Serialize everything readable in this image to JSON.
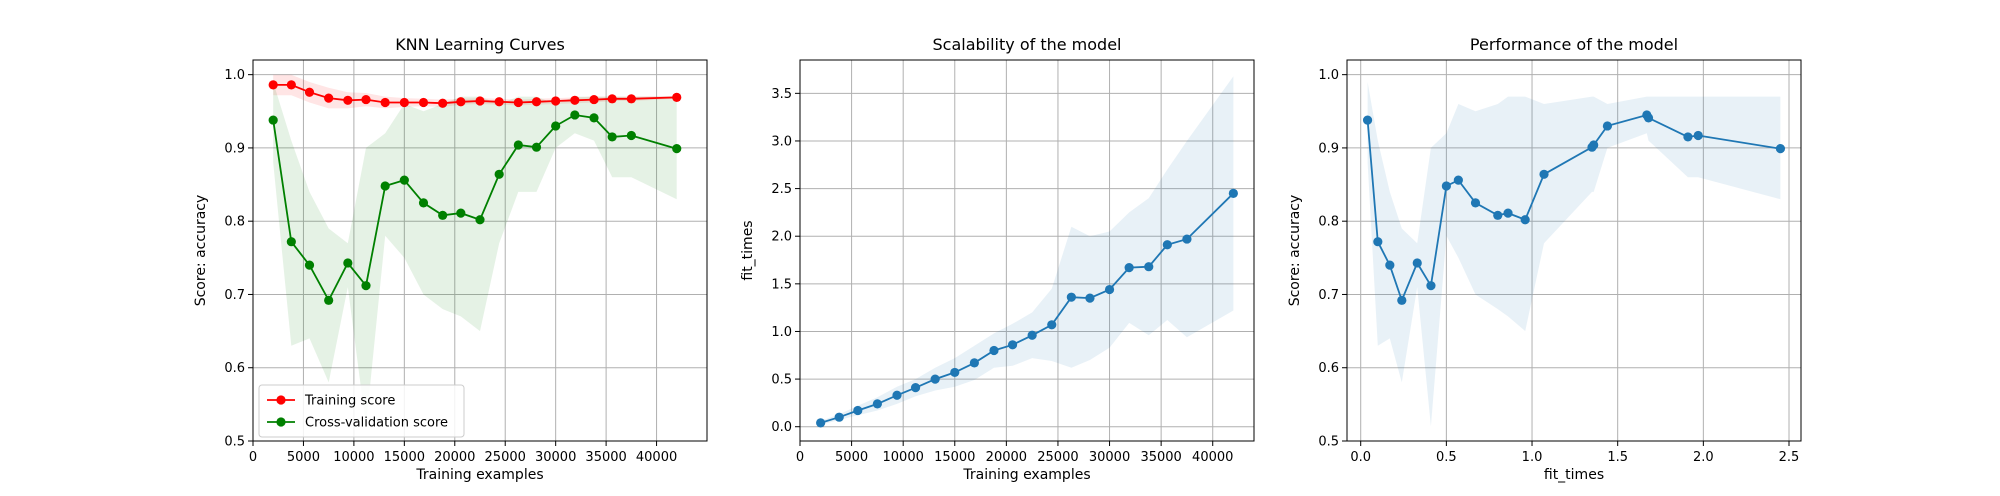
{
  "chart_data": [
    {
      "type": "line",
      "title": "KNN Learning Curves",
      "xlabel": "Training examples",
      "ylabel": "Score: accuracy",
      "xlim": [
        0,
        45000
      ],
      "ylim": [
        0.5,
        1.02
      ],
      "xticks": [
        0,
        5000,
        10000,
        15000,
        20000,
        25000,
        30000,
        35000,
        40000
      ],
      "yticks": [
        0.5,
        0.6,
        0.7,
        0.8,
        0.9,
        1.0
      ],
      "grid": true,
      "legend_position": "lower-left",
      "x": [
        2000,
        3800,
        5600,
        7500,
        9400,
        11200,
        13100,
        15000,
        16900,
        18800,
        20600,
        22500,
        24400,
        26300,
        28100,
        30000,
        31900,
        33800,
        35600,
        37500,
        42000
      ],
      "series": [
        {
          "name": "Training score",
          "color": "#ff0000",
          "values": [
            0.986,
            0.986,
            0.976,
            0.968,
            0.965,
            0.966,
            0.962,
            0.962,
            0.962,
            0.961,
            0.963,
            0.964,
            0.963,
            0.962,
            0.963,
            0.964,
            0.965,
            0.966,
            0.967,
            0.967,
            0.969
          ],
          "band_upper": [
            1.0,
            1.0,
            0.99,
            0.982,
            0.976,
            0.975,
            0.97,
            0.968,
            0.967,
            0.966,
            0.967,
            0.968,
            0.967,
            0.966,
            0.967,
            0.968,
            0.969,
            0.97,
            0.97,
            0.97,
            0.971
          ],
          "band_lower": [
            0.972,
            0.972,
            0.962,
            0.954,
            0.954,
            0.957,
            0.954,
            0.956,
            0.957,
            0.956,
            0.959,
            0.96,
            0.959,
            0.958,
            0.959,
            0.96,
            0.961,
            0.962,
            0.964,
            0.964,
            0.967
          ]
        },
        {
          "name": "Cross-validation score",
          "color": "#008000",
          "values": [
            0.938,
            0.772,
            0.74,
            0.692,
            0.743,
            0.712,
            0.848,
            0.856,
            0.825,
            0.808,
            0.811,
            0.802,
            0.864,
            0.904,
            0.901,
            0.93,
            0.945,
            0.941,
            0.915,
            0.917,
            0.899
          ],
          "band_upper": [
            0.99,
            0.91,
            0.84,
            0.79,
            0.77,
            0.9,
            0.92,
            0.96,
            0.95,
            0.96,
            0.97,
            0.97,
            0.96,
            0.97,
            0.97,
            0.96,
            0.97,
            0.97,
            0.97,
            0.97,
            0.97
          ],
          "band_lower": [
            0.88,
            0.63,
            0.64,
            0.58,
            0.71,
            0.52,
            0.78,
            0.75,
            0.7,
            0.68,
            0.67,
            0.65,
            0.77,
            0.84,
            0.84,
            0.9,
            0.92,
            0.91,
            0.86,
            0.86,
            0.83
          ]
        }
      ]
    },
    {
      "type": "line",
      "title": "Scalability of the model",
      "xlabel": "Training examples",
      "ylabel": "fit_times",
      "xlim": [
        0,
        44000
      ],
      "ylim": [
        -0.15,
        3.85
      ],
      "xticks": [
        0,
        5000,
        10000,
        15000,
        20000,
        25000,
        30000,
        35000,
        40000
      ],
      "yticks": [
        0.0,
        0.5,
        1.0,
        1.5,
        2.0,
        2.5,
        3.0,
        3.5
      ],
      "grid": true,
      "x": [
        2000,
        3800,
        5600,
        7500,
        9400,
        11200,
        13100,
        15000,
        16900,
        18800,
        20600,
        22500,
        24400,
        26300,
        28100,
        30000,
        31900,
        33800,
        35600,
        37500,
        42000
      ],
      "series": [
        {
          "color": "#1f77b4",
          "values": [
            0.04,
            0.1,
            0.17,
            0.24,
            0.33,
            0.41,
            0.5,
            0.57,
            0.67,
            0.8,
            0.86,
            0.96,
            1.07,
            1.36,
            1.35,
            1.44,
            1.67,
            1.68,
            1.91,
            1.97,
            2.45
          ],
          "band_upper": [
            0.06,
            0.13,
            0.22,
            0.31,
            0.42,
            0.5,
            0.62,
            0.72,
            0.85,
            0.98,
            1.08,
            1.2,
            1.45,
            2.1,
            2.0,
            2.05,
            2.25,
            2.4,
            2.7,
            3.0,
            3.68
          ],
          "band_lower": [
            0.02,
            0.07,
            0.12,
            0.17,
            0.24,
            0.32,
            0.38,
            0.42,
            0.49,
            0.62,
            0.64,
            0.72,
            0.69,
            0.62,
            0.7,
            0.83,
            1.09,
            0.96,
            1.12,
            0.94,
            1.22
          ]
        }
      ]
    },
    {
      "type": "line",
      "title": "Performance of the model",
      "xlabel": "fit_times",
      "ylabel": "Score: accuracy",
      "xlim": [
        -0.08,
        2.57
      ],
      "ylim": [
        0.5,
        1.02
      ],
      "xticks": [
        0.0,
        0.5,
        1.0,
        1.5,
        2.0,
        2.5
      ],
      "yticks": [
        0.5,
        0.6,
        0.7,
        0.8,
        0.9,
        1.0
      ],
      "grid": true,
      "x": [
        0.04,
        0.1,
        0.17,
        0.24,
        0.33,
        0.41,
        0.5,
        0.57,
        0.67,
        0.8,
        0.86,
        0.96,
        1.07,
        1.35,
        1.36,
        1.44,
        1.67,
        1.68,
        1.91,
        1.97,
        2.45
      ],
      "series": [
        {
          "color": "#1f77b4",
          "values": [
            0.938,
            0.772,
            0.74,
            0.692,
            0.743,
            0.712,
            0.848,
            0.856,
            0.825,
            0.808,
            0.811,
            0.802,
            0.864,
            0.901,
            0.904,
            0.93,
            0.945,
            0.941,
            0.915,
            0.917,
            0.899
          ],
          "band_upper": [
            0.99,
            0.91,
            0.84,
            0.79,
            0.77,
            0.9,
            0.92,
            0.96,
            0.95,
            0.96,
            0.97,
            0.97,
            0.96,
            0.97,
            0.97,
            0.96,
            0.97,
            0.97,
            0.97,
            0.97,
            0.97
          ],
          "band_lower": [
            0.88,
            0.63,
            0.64,
            0.58,
            0.71,
            0.52,
            0.78,
            0.75,
            0.7,
            0.68,
            0.67,
            0.65,
            0.77,
            0.84,
            0.84,
            0.9,
            0.92,
            0.91,
            0.86,
            0.86,
            0.83
          ]
        }
      ]
    }
  ]
}
